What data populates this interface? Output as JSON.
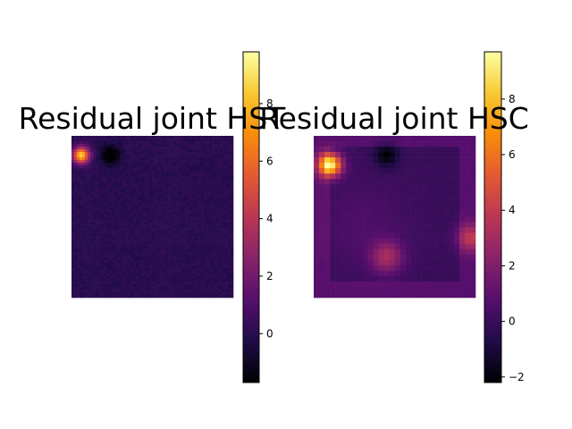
{
  "chart_data": [
    {
      "type": "heatmap",
      "title": "Residual joint HST",
      "xlabel": "",
      "ylabel": "",
      "colormap": "inferno",
      "vmin": -1.7,
      "vmax": 9.8,
      "colorbar_ticks": [
        {
          "value": 0,
          "label": "0"
        },
        {
          "value": 2,
          "label": "2"
        },
        {
          "value": 4,
          "label": "4"
        },
        {
          "value": 6,
          "label": "6"
        },
        {
          "value": 8,
          "label": "8"
        }
      ],
      "features": [
        {
          "kind": "peak",
          "x": 0.06,
          "y": 0.12,
          "amplitude": 8.5
        },
        {
          "kind": "dip",
          "x": 0.24,
          "y": 0.12,
          "amplitude": -2.5
        }
      ]
    },
    {
      "type": "heatmap",
      "title": "Residual joint HSC",
      "xlabel": "",
      "ylabel": "",
      "colormap": "inferno",
      "vmin": -2.2,
      "vmax": 9.7,
      "colorbar_ticks": [
        {
          "value": -2,
          "label": "−2"
        },
        {
          "value": 0,
          "label": "0"
        },
        {
          "value": 2,
          "label": "2"
        },
        {
          "value": 4,
          "label": "4"
        },
        {
          "value": 6,
          "label": "6"
        },
        {
          "value": 8,
          "label": "8"
        }
      ],
      "features": [
        {
          "kind": "peak",
          "x": 0.1,
          "y": 0.18,
          "amplitude": 9.5
        },
        {
          "kind": "peak",
          "x": 0.45,
          "y": 0.75,
          "amplitude": 3.0
        },
        {
          "kind": "peak",
          "x": 0.97,
          "y": 0.63,
          "amplitude": 3.2
        },
        {
          "kind": "dip",
          "x": 0.45,
          "y": 0.12,
          "amplitude": -2.2
        }
      ]
    }
  ]
}
